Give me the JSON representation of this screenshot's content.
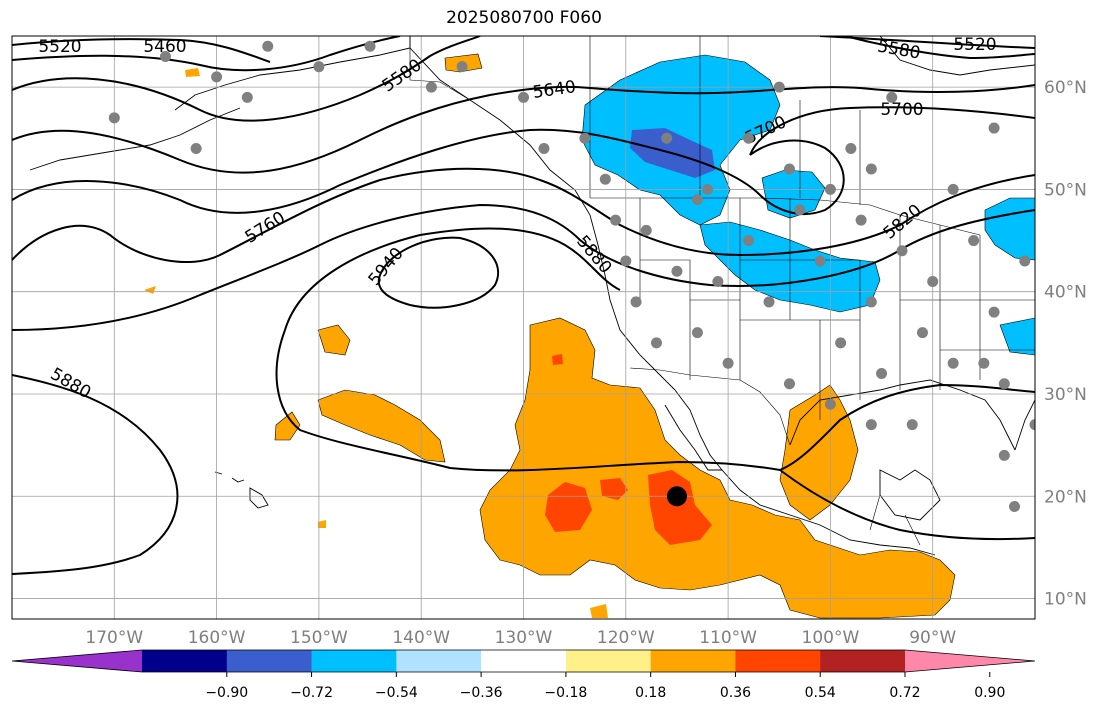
{
  "title": "2025080700 F060",
  "map": {
    "lon_range": [
      -180,
      -80
    ],
    "lat_range": [
      8,
      65
    ],
    "lon_ticks": [
      {
        "value": -170,
        "label": "170°W"
      },
      {
        "value": -160,
        "label": "160°W"
      },
      {
        "value": -150,
        "label": "150°W"
      },
      {
        "value": -140,
        "label": "140°W"
      },
      {
        "value": -130,
        "label": "130°W"
      },
      {
        "value": -120,
        "label": "120°W"
      },
      {
        "value": -110,
        "label": "110°W"
      },
      {
        "value": -100,
        "label": "100°W"
      },
      {
        "value": -90,
        "label": "90°W"
      }
    ],
    "lat_ticks": [
      {
        "value": 10,
        "label": "10°N"
      },
      {
        "value": 20,
        "label": "20°N"
      },
      {
        "value": 30,
        "label": "30°N"
      },
      {
        "value": 40,
        "label": "40°N"
      },
      {
        "value": 50,
        "label": "50°N"
      },
      {
        "value": 60,
        "label": "60°N"
      }
    ],
    "contour_labels": [
      "5460",
      "5520",
      "5580",
      "5640",
      "5700",
      "5760",
      "5820",
      "5880",
      "5940"
    ],
    "marker_center": {
      "lon": -115,
      "lat": 20
    }
  },
  "colorbar": {
    "colors": [
      "#9932cc",
      "#00008b",
      "#3a5fcd",
      "#00bfff",
      "#b0e2ff",
      "#ffffff",
      "#fff08a",
      "#ffa500",
      "#ff4500",
      "#b22222",
      "#ff88aa"
    ],
    "tick_labels": [
      "−0.90",
      "−0.72",
      "−0.54",
      "−0.36",
      "−0.18",
      "0.18",
      "0.36",
      "0.54",
      "0.72",
      "0.90"
    ]
  },
  "colors": {
    "land_border": "#000000",
    "grid": "#a0a0a0",
    "station_dot": "#808080"
  }
}
